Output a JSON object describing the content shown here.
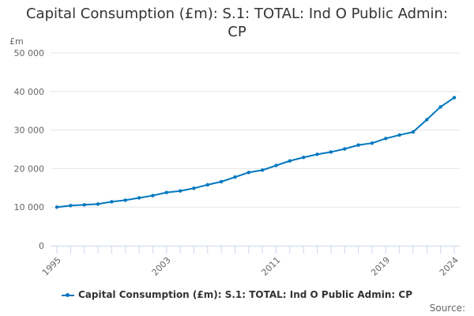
{
  "chart_data": {
    "type": "line",
    "title": "Capital Consumption (£m): S.1: TOTAL: Ind O Public Admin: CP",
    "ylabel": "£m",
    "ylim": [
      0,
      50000
    ],
    "yticks": [
      0,
      10000,
      20000,
      30000,
      40000,
      50000
    ],
    "ytick_labels": [
      "0",
      "10 000",
      "20 000",
      "30 000",
      "40 000",
      "50 000"
    ],
    "xtick_labels": [
      "1995",
      "2003",
      "2011",
      "2019",
      "2024"
    ],
    "grid": true,
    "legend": "bottom",
    "color": "#0077c0",
    "x": [
      1995,
      1996,
      1997,
      1998,
      1999,
      2000,
      2001,
      2002,
      2003,
      2004,
      2005,
      2006,
      2007,
      2008,
      2009,
      2010,
      2011,
      2012,
      2013,
      2014,
      2015,
      2016,
      2017,
      2018,
      2019,
      2020,
      2021,
      2022,
      2023,
      2024
    ],
    "series": [
      {
        "name": "Capital Consumption (£m): S.1: TOTAL: Ind O Public Admin: CP",
        "values": [
          10000,
          10400,
          10600,
          10800,
          11400,
          11800,
          12400,
          13000,
          13800,
          14200,
          14900,
          15800,
          16600,
          17800,
          19000,
          19600,
          20800,
          22000,
          22900,
          23700,
          24300,
          25100,
          26100,
          26600,
          27800,
          28700,
          29500,
          32700,
          36000,
          38400
        ]
      }
    ]
  },
  "source_label": "Source:"
}
